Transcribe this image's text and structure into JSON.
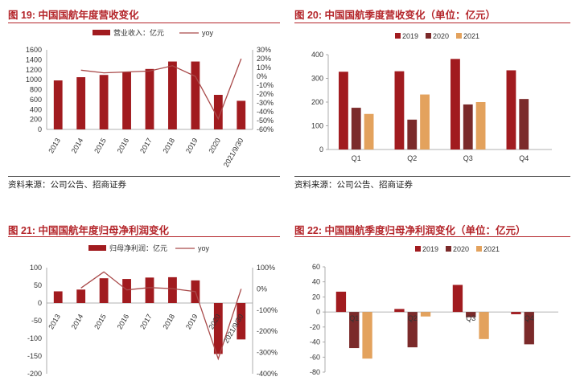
{
  "colors": {
    "title": "#b4252a",
    "c2019": "#a11b1f",
    "c2020": "#7b2a2a",
    "c2021": "#e3a25d",
    "revenue": "#a11b1f",
    "yoy": "#a94a4a"
  },
  "panels": [
    {
      "id": "fig19",
      "title": "图 19:  中国国航年度营收变化",
      "source": "资料来源：公司公告、招商证券",
      "chart_data": {
        "type": "bar+line",
        "title": "中国国航年度营收变化",
        "categories": [
          "2013",
          "2014",
          "2015",
          "2016",
          "2017",
          "2018",
          "2019",
          "2020",
          "2021/9/30"
        ],
        "series": [
          {
            "name": "营业收入：亿元",
            "type": "bar",
            "axis": "left",
            "values": [
              985,
              1050,
              1095,
              1155,
              1215,
              1365,
              1365,
              695,
              575
            ]
          },
          {
            "name": "yoy",
            "type": "line",
            "axis": "right",
            "values": [
              null,
              7,
              4,
              5,
              6,
              12,
              0,
              -48,
              20
            ]
          }
        ],
        "yticks_left": [
          "0",
          "200",
          "400",
          "600",
          "800",
          "1000",
          "1200",
          "1400",
          "1600"
        ],
        "yticks_right": [
          "-60%",
          "-50%",
          "-40%",
          "-30%",
          "-20%",
          "-10%",
          "0%",
          "10%",
          "20%",
          "30%"
        ],
        "ylim_left": [
          0,
          1600
        ],
        "ylim_right": [
          -60,
          30
        ],
        "legend_position": "top"
      }
    },
    {
      "id": "fig20",
      "title": "图 20:  中国国航季度营收变化（单位：亿元）",
      "source": "资料来源：公司公告、招商证券",
      "chart_data": {
        "type": "bar",
        "title": "中国国航季度营收变化（单位：亿元）",
        "categories": [
          "Q1",
          "Q2",
          "Q3",
          "Q4"
        ],
        "series": [
          {
            "name": "2019",
            "values": [
              328,
              330,
              382,
              334
            ]
          },
          {
            "name": "2020",
            "values": [
              176,
              126,
              190,
              213
            ]
          },
          {
            "name": "2021",
            "values": [
              150,
              232,
              200,
              null
            ]
          }
        ],
        "yticks": [
          "0",
          "100",
          "200",
          "300",
          "400"
        ],
        "ylim": [
          0,
          400
        ],
        "legend_position": "top-left"
      }
    },
    {
      "id": "fig21",
      "title": "图 21:  中国国航年度归母净利润变化",
      "source": "",
      "chart_data": {
        "type": "bar+line",
        "title": "中国国航年度归母净利润变化",
        "categories": [
          "2013",
          "2014",
          "2015",
          "2016",
          "2017",
          "2018",
          "2019",
          "2020",
          "2021/9/30"
        ],
        "series": [
          {
            "name": "归母净利润：亿元",
            "type": "bar",
            "axis": "left",
            "values": [
              33,
              38,
              70,
              68,
              72,
              73,
              64,
              -144,
              -103
            ]
          },
          {
            "name": "yoy",
            "type": "line",
            "axis": "right",
            "values": [
              null,
              4,
              80,
              -5,
              6,
              1,
              -13,
              -330,
              0
            ]
          }
        ],
        "yticks_left": [
          "-200",
          "-150",
          "-100",
          "-50",
          "0",
          "50",
          "100"
        ],
        "yticks_right": [
          "-400%",
          "-300%",
          "-200%",
          "-100%",
          "0%",
          "100%"
        ],
        "ylim_left": [
          -200,
          100
        ],
        "ylim_right": [
          -400,
          100
        ],
        "legend_position": "top"
      }
    },
    {
      "id": "fig22",
      "title": "图 22:  中国国航季度归母净利润变化（单位：亿元）",
      "source": "",
      "chart_data": {
        "type": "bar",
        "title": "中国国航季度归母净利润变化（单位：亿元）",
        "categories": [
          "Q1",
          "Q2",
          "Q3",
          "Q4"
        ],
        "series": [
          {
            "name": "2019",
            "values": [
              27,
              4,
              36,
              -3
            ]
          },
          {
            "name": "2020",
            "values": [
              -48,
              -47,
              -7,
              -43
            ]
          },
          {
            "name": "2021",
            "values": [
              -62,
              -6,
              -36,
              null
            ]
          }
        ],
        "yticks": [
          "-80",
          "-60",
          "-40",
          "-20",
          "0",
          "20",
          "40",
          "60"
        ],
        "ylim": [
          -80,
          60
        ],
        "legend_position": "top"
      }
    }
  ]
}
